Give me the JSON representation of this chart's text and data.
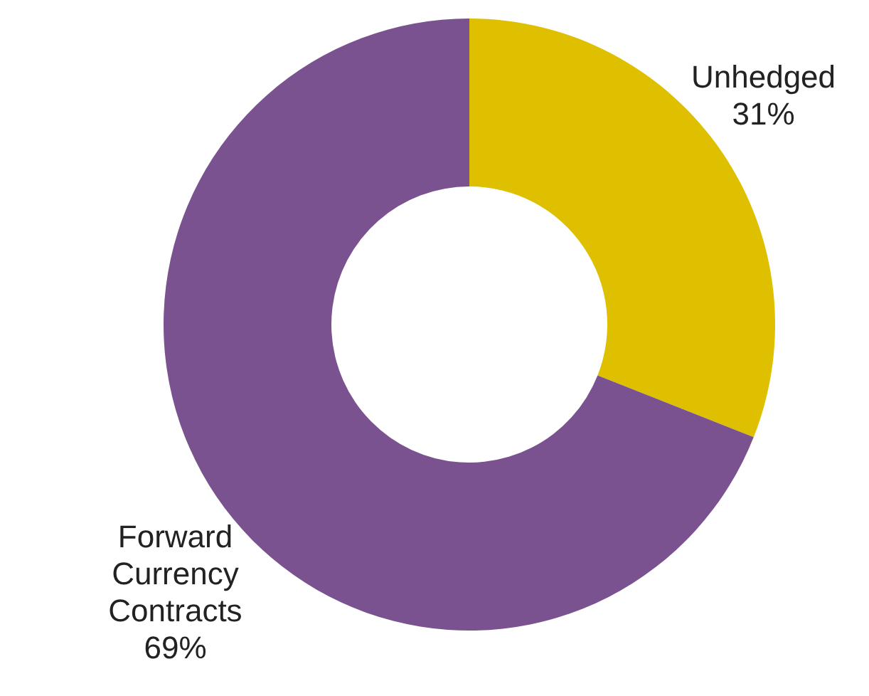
{
  "chart_data": {
    "type": "donut",
    "categories": [
      "Unhedged",
      "Forward Currency Contracts"
    ],
    "values": [
      31,
      69
    ],
    "colors": [
      "#dfc000",
      "#7b5290"
    ],
    "value_labels": [
      "31%",
      "69%"
    ],
    "legend": false
  }
}
